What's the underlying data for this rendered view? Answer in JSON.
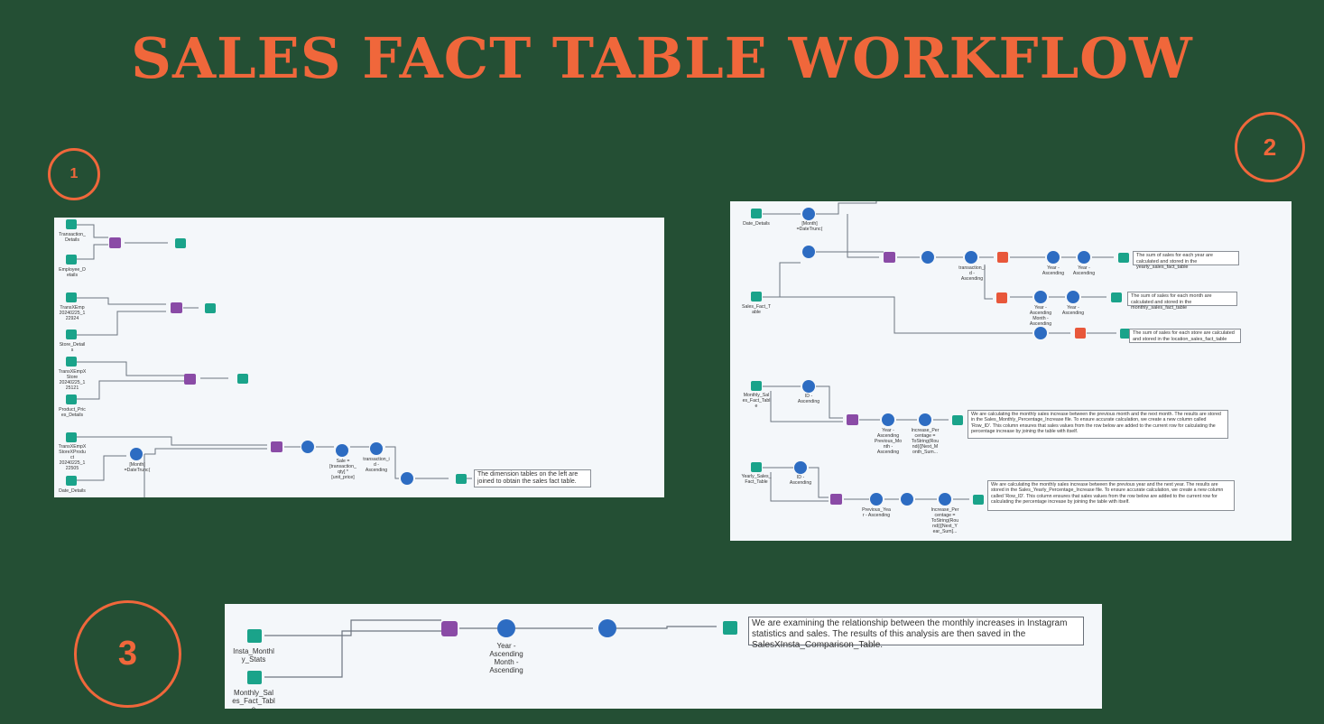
{
  "title": "SALES FACT TABLE WORKFLOW",
  "badges": [
    "1",
    "2",
    "3"
  ],
  "colors": {
    "background": "#244f34",
    "accent": "#f0673b",
    "canvas": "#f4f7fa",
    "input_tool": "#1aa38a",
    "join_tool": "#8a4ba6",
    "formula_tool": "#2d6cc2",
    "summarize_tool": "#e8573a",
    "output_tool": "#1aa38a"
  },
  "panel1": {
    "labels": {
      "transaction_details": "Transaction_\nDetails",
      "employee_details": "Employee_D\netails",
      "transemp": "TransXEmp\n20240225_1\n22924",
      "store_details": "Store_Detail\ns",
      "transempstore": "TransXEmpX\nStore\n20240225_1\n25121",
      "product_prices": "Product_Pric\nes_Details",
      "transempstoreprod": "TransXEmpX\nStoreXProdu\nct\n20240225_1\n22505",
      "date_details": "Date_Details",
      "month_date": "[Month]\n=DateTrunc(",
      "sale_formula": "Sale =\n[transaction_\nqty] *\n[unit_price]",
      "sort_transaction": "transaction_i\nd -\nAscending"
    },
    "note": "The dimension tables on the left are joined to obtain the sales fact table."
  },
  "panel2": {
    "labels": {
      "date_details": "Date_Details",
      "month_date": "[Month]\n=DateTrunc(",
      "sales_fact_table": "Sales_Fact_T\nable",
      "sort_transaction": "transaction_i\nd -\nAscending",
      "sort_year_1": "Year -\nAscending",
      "sort_year_2": "Year -\nAscending",
      "sort_year_month": "Year -\nAscending\nMonth -\nAscending",
      "sort_year_3": "Year -\nAscending",
      "monthly_sales": "Monthly_Sal\nes_Fact_Tabl\ne",
      "id_asc_1": "ID -\nAscending",
      "sort_prev_month": "Year -\nAscending\nPrevious_Mo\nnth -\nAscending",
      "increase_month": "Increase_Per\ncentage =\nToString(Rou\nnd(([Next_M\nonth_Sum...",
      "yearly_sales": "Yearly_Sales_\nFact_Table",
      "id_asc_2": "ID -\nAscending",
      "sort_prev_year": "Previous_Yea\nr - Ascending",
      "increase_year": "Increase_Per\ncentage =\nToString(Rou\nnd(([Next_Y\near_Sum]..."
    },
    "notes": {
      "yearly": "The sum of sales for each year are calculated and stored in the yearly_sales_fact_table",
      "monthly": "The sum of sales for each month are calculated and stored in the monthly_sales_fact_table",
      "location": "The sum of sales for each store are calculated and stored in the location_sales_fact_table",
      "monthly_increase": "We are calculating the monthly sales increase between the previous month and the next month. The results are stored in the Sales_Monthly_Percentage_Increase file. To ensure accurate calculation, we create a new column called 'Row_ID'. This column ensures that sales values from the row below are added to the current row for calculating the percentage increase by joining the table with itself.",
      "yearly_increase": "We are calculating the monthly sales increase between the previous year and the next year. The results are stored in the Sales_Yearly_Percentage_Increase file. To ensure accurate calculation, we create a new column called 'Row_ID'. This column ensures that sales values from the row below are added to the current row for calculating the percentage increase by joining the table with itself."
    }
  },
  "panel3": {
    "labels": {
      "insta_monthly": "Insta_Monthl\ny_Stats",
      "monthly_sales": "Monthly_Sal\nes_Fact_Tabl\ne",
      "sort_year_month": "Year -\nAscending\nMonth -\nAscending"
    },
    "note": "We are examining the relationship between the monthly increases in Instagram statistics and sales. The results of this analysis are then saved in the SalesXInsta_Comparison_Table."
  }
}
